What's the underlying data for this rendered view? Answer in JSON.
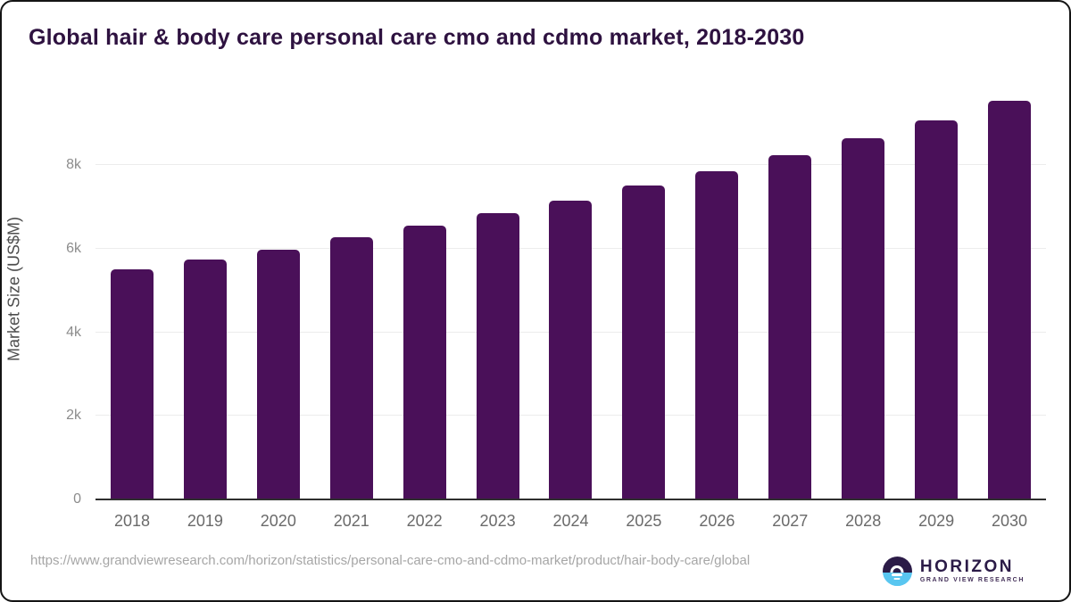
{
  "header": {
    "title": "Global hair & body care personal care cmo and cdmo market, 2018-2030"
  },
  "chart_data": {
    "type": "bar",
    "title": "Global hair & body care personal care cmo and cdmo market, 2018-2030",
    "categories": [
      "2018",
      "2019",
      "2020",
      "2021",
      "2022",
      "2023",
      "2024",
      "2025",
      "2026",
      "2027",
      "2028",
      "2029",
      "2030"
    ],
    "values": [
      5510,
      5740,
      5970,
      6270,
      6550,
      6850,
      7160,
      7510,
      7860,
      8230,
      8640,
      9070,
      9550
    ],
    "xlabel": "",
    "ylabel": "Market Size (US$M)",
    "ylim": [
      0,
      9800
    ],
    "yticks": [
      {
        "value": 0,
        "label": "0"
      },
      {
        "value": 2000,
        "label": "2k"
      },
      {
        "value": 4000,
        "label": "4k"
      },
      {
        "value": 6000,
        "label": "6k"
      },
      {
        "value": 8000,
        "label": "8k"
      }
    ],
    "grid": "horizontal",
    "legend": "none",
    "bar_color": "#4a1059"
  },
  "footer": {
    "source_url": "https://www.grandviewresearch.com/horizon/statistics/personal-care-cmo-and-cdmo-market/product/hair-body-care/global",
    "logo": {
      "brand": "HORIZON",
      "tagline": "GRAND VIEW RESEARCH"
    }
  },
  "colors": {
    "title_color": "#2e1240",
    "bar_color": "#4a1059",
    "axis_color": "#2f2f2f",
    "grid_color": "#ececec",
    "tick_color": "#8c8c8c",
    "xlabel_color": "#6a6a6a",
    "ylabel_color": "#4d4d4d",
    "url_color": "#a6a6a6",
    "logo_purple": "#2b1b47",
    "logo_blue": "#59c6f0"
  }
}
